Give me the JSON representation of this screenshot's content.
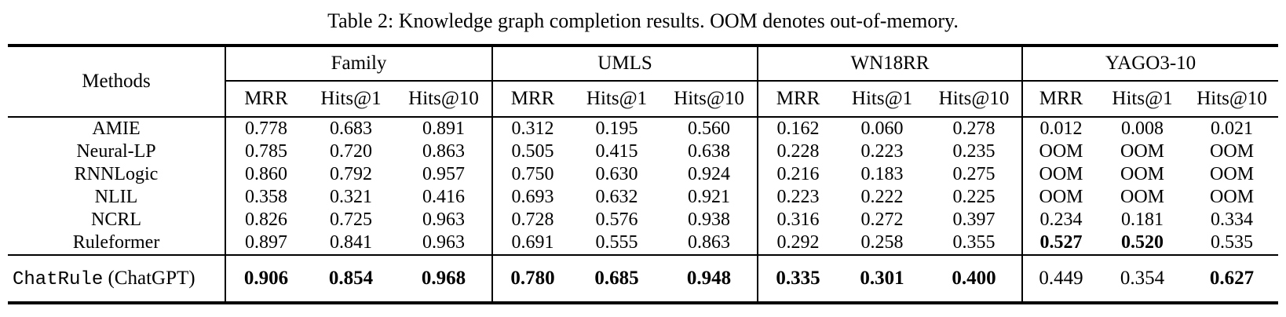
{
  "caption": {
    "text": "Table 2: Knowledge graph completion results. OOM denotes out-of-memory."
  },
  "table": {
    "methods_header": "Methods",
    "groups": [
      {
        "name": "Family"
      },
      {
        "name": "UMLS"
      },
      {
        "name": "WN18RR"
      },
      {
        "name": "YAGO3-10"
      }
    ],
    "metric_headers": [
      "MRR",
      "Hits@1",
      "Hits@10"
    ],
    "rows": [
      {
        "method": "AMIE",
        "cells": [
          {
            "v": "0.778",
            "b": false
          },
          {
            "v": "0.683",
            "b": false
          },
          {
            "v": "0.891",
            "b": false
          },
          {
            "v": "0.312",
            "b": false
          },
          {
            "v": "0.195",
            "b": false
          },
          {
            "v": "0.560",
            "b": false
          },
          {
            "v": "0.162",
            "b": false
          },
          {
            "v": "0.060",
            "b": false
          },
          {
            "v": "0.278",
            "b": false
          },
          {
            "v": "0.012",
            "b": false
          },
          {
            "v": "0.008",
            "b": false
          },
          {
            "v": "0.021",
            "b": false
          }
        ]
      },
      {
        "method": "Neural-LP",
        "cells": [
          {
            "v": "0.785",
            "b": false
          },
          {
            "v": "0.720",
            "b": false
          },
          {
            "v": "0.863",
            "b": false
          },
          {
            "v": "0.505",
            "b": false
          },
          {
            "v": "0.415",
            "b": false
          },
          {
            "v": "0.638",
            "b": false
          },
          {
            "v": "0.228",
            "b": false
          },
          {
            "v": "0.223",
            "b": false
          },
          {
            "v": "0.235",
            "b": false
          },
          {
            "v": "OOM",
            "b": false
          },
          {
            "v": "OOM",
            "b": false
          },
          {
            "v": "OOM",
            "b": false
          }
        ]
      },
      {
        "method": "RNNLogic",
        "cells": [
          {
            "v": "0.860",
            "b": false
          },
          {
            "v": "0.792",
            "b": false
          },
          {
            "v": "0.957",
            "b": false
          },
          {
            "v": "0.750",
            "b": false
          },
          {
            "v": "0.630",
            "b": false
          },
          {
            "v": "0.924",
            "b": false
          },
          {
            "v": "0.216",
            "b": false
          },
          {
            "v": "0.183",
            "b": false
          },
          {
            "v": "0.275",
            "b": false
          },
          {
            "v": "OOM",
            "b": false
          },
          {
            "v": "OOM",
            "b": false
          },
          {
            "v": "OOM",
            "b": false
          }
        ]
      },
      {
        "method": "NLIL",
        "cells": [
          {
            "v": "0.358",
            "b": false
          },
          {
            "v": "0.321",
            "b": false
          },
          {
            "v": "0.416",
            "b": false
          },
          {
            "v": "0.693",
            "b": false
          },
          {
            "v": "0.632",
            "b": false
          },
          {
            "v": "0.921",
            "b": false
          },
          {
            "v": "0.223",
            "b": false
          },
          {
            "v": "0.222",
            "b": false
          },
          {
            "v": "0.225",
            "b": false
          },
          {
            "v": "OOM",
            "b": false
          },
          {
            "v": "OOM",
            "b": false
          },
          {
            "v": "OOM",
            "b": false
          }
        ]
      },
      {
        "method": "NCRL",
        "cells": [
          {
            "v": "0.826",
            "b": false
          },
          {
            "v": "0.725",
            "b": false
          },
          {
            "v": "0.963",
            "b": false
          },
          {
            "v": "0.728",
            "b": false
          },
          {
            "v": "0.576",
            "b": false
          },
          {
            "v": "0.938",
            "b": false
          },
          {
            "v": "0.316",
            "b": false
          },
          {
            "v": "0.272",
            "b": false
          },
          {
            "v": "0.397",
            "b": false
          },
          {
            "v": "0.234",
            "b": false
          },
          {
            "v": "0.181",
            "b": false
          },
          {
            "v": "0.334",
            "b": false
          }
        ]
      },
      {
        "method": "Ruleformer",
        "cells": [
          {
            "v": "0.897",
            "b": false
          },
          {
            "v": "0.841",
            "b": false
          },
          {
            "v": "0.963",
            "b": false
          },
          {
            "v": "0.691",
            "b": false
          },
          {
            "v": "0.555",
            "b": false
          },
          {
            "v": "0.863",
            "b": false
          },
          {
            "v": "0.292",
            "b": false
          },
          {
            "v": "0.258",
            "b": false
          },
          {
            "v": "0.355",
            "b": false
          },
          {
            "v": "0.527",
            "b": true
          },
          {
            "v": "0.520",
            "b": true
          },
          {
            "v": "0.535",
            "b": false
          }
        ]
      },
      {
        "method": "ChatRule (ChatGPT)",
        "method_mono": "ChatRule",
        "method_suffix": " (ChatGPT)",
        "rule_above": true,
        "align_left": true,
        "cells": [
          {
            "v": "0.906",
            "b": true
          },
          {
            "v": "0.854",
            "b": true
          },
          {
            "v": "0.968",
            "b": true
          },
          {
            "v": "0.780",
            "b": true
          },
          {
            "v": "0.685",
            "b": true
          },
          {
            "v": "0.948",
            "b": true
          },
          {
            "v": "0.335",
            "b": true
          },
          {
            "v": "0.301",
            "b": true
          },
          {
            "v": "0.400",
            "b": true
          },
          {
            "v": "0.449",
            "b": false
          },
          {
            "v": "0.354",
            "b": false
          },
          {
            "v": "0.627",
            "b": true
          }
        ]
      }
    ]
  }
}
